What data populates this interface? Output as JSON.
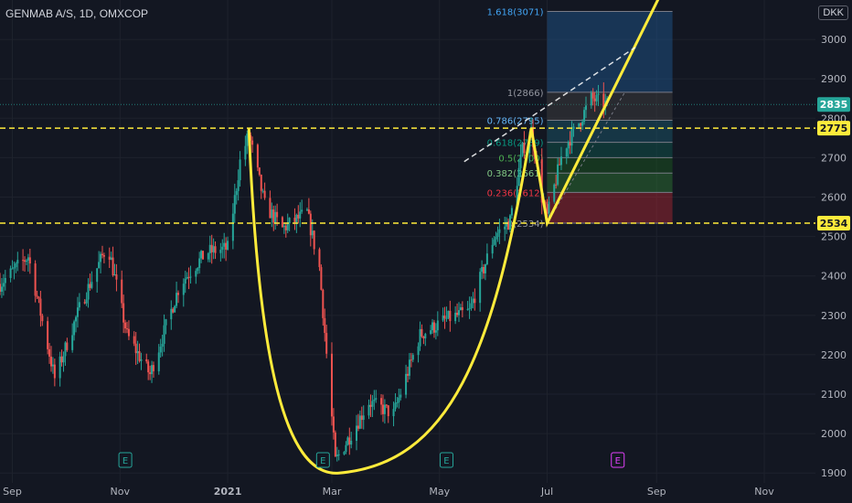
{
  "header": {
    "title": "GENMAB A/S, 1D, OMXCOP",
    "currency": "DKK"
  },
  "colors": {
    "background": "#131722",
    "up": "#26a69a",
    "down": "#ef5350",
    "pattern": "#ffeb3b",
    "axis_text": "#b2b5be",
    "grid": "#1e222d"
  },
  "chart_data": {
    "type": "candlestick",
    "x_tick_labels": [
      "Sep",
      "Nov",
      "2021",
      "Mar",
      "May",
      "Jul",
      "Sep",
      "Nov"
    ],
    "y_ticks": [
      1900,
      2000,
      2100,
      2200,
      2300,
      2400,
      2500,
      2600,
      2700,
      2800,
      2900,
      3000
    ],
    "ylim": [
      1875,
      3100
    ],
    "x_range_dates": [
      "2020-08-25",
      "2021-11-30"
    ],
    "grid": true,
    "price_labels": [
      {
        "value": 2835,
        "label": "2835",
        "style": "last"
      },
      {
        "value": 2775,
        "label": "2775",
        "style": "level"
      },
      {
        "value": 2534,
        "label": "2534",
        "style": "level"
      }
    ],
    "horizontal_levels": [
      2775,
      2534
    ],
    "fibonacci": {
      "base": 2534,
      "top": 2866,
      "levels": [
        {
          "ratio": 0,
          "price": 2534,
          "label": "0(2534)"
        },
        {
          "ratio": 0.236,
          "price": 2612,
          "label": "0.236(2612)"
        },
        {
          "ratio": 0.382,
          "price": 2661,
          "label": "0.382(2661)"
        },
        {
          "ratio": 0.5,
          "price": 2700,
          "label": "0.5(2700)"
        },
        {
          "ratio": 0.618,
          "price": 2739,
          "label": "0.618(2739)"
        },
        {
          "ratio": 0.786,
          "price": 2795,
          "label": "0.786(2795)"
        },
        {
          "ratio": 1,
          "price": 2866,
          "label": "1(2866)"
        },
        {
          "ratio": 1.618,
          "price": 3071,
          "label": "1.618(3071)"
        }
      ]
    },
    "earnings_markers": [
      {
        "date": "2020-11-04",
        "label": "E"
      },
      {
        "date": "2021-02-24",
        "label": "E"
      },
      {
        "date": "2021-05-05",
        "label": "E"
      },
      {
        "date": "2021-08-10",
        "label": "E",
        "upcoming": true
      }
    ],
    "anchors": [
      [
        "2020-08-25",
        2380
      ],
      [
        "2020-09-10",
        2450
      ],
      [
        "2020-09-25",
        2140
      ],
      [
        "2020-10-10",
        2330
      ],
      [
        "2020-10-25",
        2480
      ],
      [
        "2020-11-05",
        2250
      ],
      [
        "2020-11-18",
        2150
      ],
      [
        "2020-12-05",
        2380
      ],
      [
        "2020-12-20",
        2460
      ],
      [
        "2021-01-01",
        2470
      ],
      [
        "2021-01-08",
        2690
      ],
      [
        "2021-01-13",
        2760
      ],
      [
        "2021-01-22",
        2580
      ],
      [
        "2021-02-01",
        2520
      ],
      [
        "2021-02-15",
        2560
      ],
      [
        "2021-02-22",
        2420
      ],
      [
        "2021-03-03",
        1930
      ],
      [
        "2021-03-12",
        2000
      ],
      [
        "2021-03-22",
        2080
      ],
      [
        "2021-04-05",
        2050
      ],
      [
        "2021-04-20",
        2250
      ],
      [
        "2021-05-05",
        2290
      ],
      [
        "2021-05-18",
        2310
      ],
      [
        "2021-06-01",
        2500
      ],
      [
        "2021-06-10",
        2540
      ],
      [
        "2021-06-17",
        2720
      ],
      [
        "2021-06-22",
        2770
      ],
      [
        "2021-06-28",
        2600
      ],
      [
        "2021-07-01",
        2550
      ],
      [
        "2021-07-10",
        2720
      ],
      [
        "2021-07-18",
        2780
      ],
      [
        "2021-07-26",
        2850
      ],
      [
        "2021-08-04",
        2835
      ]
    ]
  }
}
